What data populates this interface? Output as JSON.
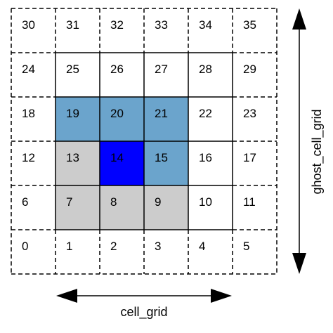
{
  "diagram": {
    "rows": [
      [
        30,
        31,
        32,
        33,
        34,
        35
      ],
      [
        24,
        25,
        26,
        27,
        28,
        29
      ],
      [
        18,
        19,
        20,
        21,
        22,
        23
      ],
      [
        12,
        13,
        14,
        15,
        16,
        17
      ],
      [
        6,
        7,
        8,
        9,
        10,
        11
      ],
      [
        0,
        1,
        2,
        3,
        4,
        5
      ]
    ],
    "cell_fill": {
      "19": "#6ba4cc",
      "20": "#6ba4cc",
      "21": "#6ba4cc",
      "15": "#6ba4cc",
      "14": "#0000ff",
      "13": "#cccccc",
      "7": "#cccccc",
      "8": "#cccccc",
      "9": "#cccccc"
    },
    "ghost_cells": [
      30,
      31,
      32,
      33,
      34,
      35,
      24,
      18,
      12,
      6,
      0,
      1,
      2,
      3,
      4,
      5,
      29,
      23,
      17,
      11
    ],
    "horizontal_label": "cell_grid",
    "vertical_label": "ghost_cell_grid"
  }
}
